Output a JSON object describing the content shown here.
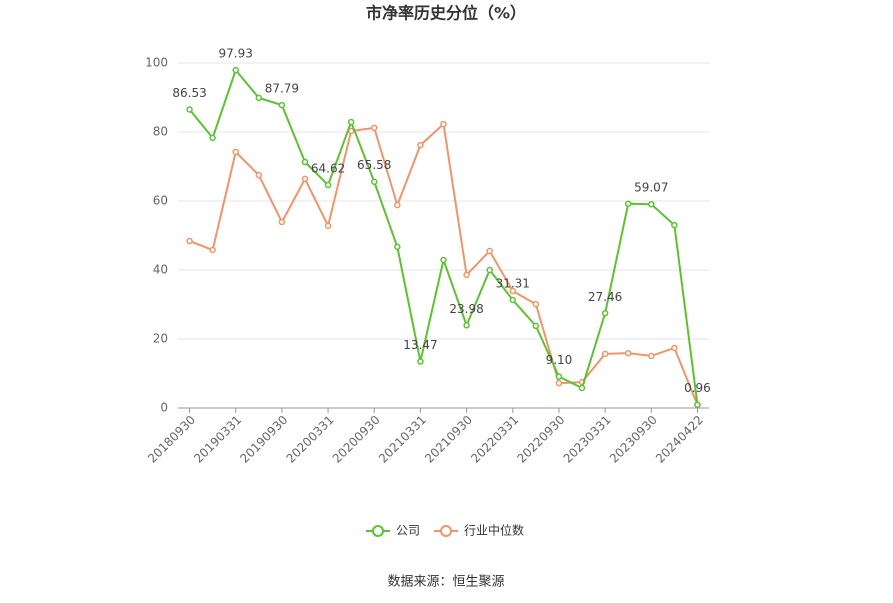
{
  "chart_data": {
    "type": "line",
    "title": "市净率历史分位（%）",
    "source": "数据来源：恒生聚源",
    "categories": [
      "20180930",
      null,
      "20190331",
      null,
      "20190930",
      null,
      "20200331",
      null,
      "20200930",
      null,
      "20210331",
      null,
      "20210930",
      null,
      "20220331",
      null,
      "20220930",
      null,
      "20230331",
      null,
      "20230930",
      null,
      "20240422"
    ],
    "series": [
      {
        "name": "公司",
        "color": "#5dc232",
        "values": [
          86.53,
          78.3,
          97.93,
          89.9,
          87.79,
          71.3,
          64.62,
          82.9,
          65.58,
          46.7,
          13.47,
          42.9,
          23.98,
          40.0,
          31.31,
          23.8,
          9.1,
          5.8,
          27.46,
          59.2,
          59.07,
          53.0,
          0.96
        ],
        "value_labels": [
          "86.53",
          null,
          "97.93",
          null,
          "87.79",
          null,
          "64.62",
          null,
          "65.58",
          null,
          "13.47",
          null,
          "23.98",
          null,
          "31.31",
          null,
          "9.10",
          null,
          "27.46",
          null,
          "59.07",
          null,
          "0.96"
        ]
      },
      {
        "name": "行业中位数",
        "color": "#f0956a",
        "values": [
          48.4,
          45.8,
          74.2,
          67.5,
          53.9,
          66.4,
          52.8,
          80.3,
          81.2,
          58.8,
          76.2,
          82.3,
          38.6,
          45.5,
          33.9,
          30.1,
          7.2,
          7.5,
          15.7,
          15.9,
          15.1,
          17.4,
          0.9
        ]
      }
    ],
    "ylim": [
      0,
      100
    ],
    "yticks": [
      0,
      20,
      40,
      60,
      80,
      100
    ],
    "grid": true,
    "legend": "bottom"
  }
}
